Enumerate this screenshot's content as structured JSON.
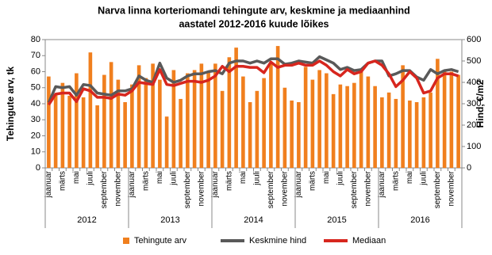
{
  "chart_data": {
    "type": "bar_line",
    "title_lines": [
      "Narva linna korteriomandi tehingute arv, keskmine ja mediaanhind",
      "aastatel 2012-2016 kuude lõikes"
    ],
    "y_label": "Tehingute arv, tk",
    "y2_label": "Hind, €/m2",
    "categories": [
      "jaanuar",
      null,
      "märts",
      null,
      "mai",
      null,
      "juuli",
      null,
      "september",
      null,
      "november",
      null,
      "jaanuar",
      null,
      "märts",
      null,
      "mai",
      null,
      "juuli",
      null,
      "september",
      null,
      "november",
      null,
      "jaanuar",
      null,
      "märts",
      null,
      "mai",
      null,
      "juuli",
      null,
      "september",
      null,
      "november",
      null,
      "jaanuar",
      null,
      "märts",
      null,
      "mai",
      null,
      "juuli",
      null,
      "september",
      null,
      "november",
      null,
      "jaanuar",
      null,
      "märts",
      null,
      "mai",
      null,
      "juuli",
      null,
      "september",
      null,
      "november",
      null
    ],
    "year_groups": [
      "2012",
      "2013",
      "2014",
      "2015",
      "2016"
    ],
    "series": [
      {
        "name": "Tehingute arv",
        "kind": "bar",
        "color": "#f07f1e",
        "values": [
          57,
          46,
          53,
          45,
          59,
          44,
          72,
          39,
          58,
          66,
          55,
          41,
          52,
          64,
          56,
          65,
          55,
          32,
          61,
          43,
          59,
          61,
          65,
          60,
          65,
          48,
          69,
          75,
          57,
          41,
          48,
          56,
          65,
          76,
          50,
          42,
          41,
          63,
          55,
          61,
          59,
          46,
          52,
          51,
          53,
          61,
          57,
          51,
          44,
          47,
          43,
          64,
          42,
          41,
          44,
          47,
          68,
          61,
          60,
          58
        ]
      },
      {
        "name": "Keskmine hind",
        "kind": "line",
        "axis": "y2",
        "color": "#595959",
        "values": [
          305,
          380,
          375,
          380,
          340,
          390,
          385,
          350,
          345,
          340,
          360,
          360,
          370,
          430,
          410,
          400,
          490,
          420,
          400,
          410,
          430,
          440,
          440,
          450,
          455,
          440,
          490,
          500,
          500,
          490,
          500,
          490,
          510,
          510,
          485,
          490,
          500,
          495,
          490,
          520,
          505,
          490,
          460,
          470,
          455,
          460,
          490,
          500,
          500,
          430,
          440,
          455,
          455,
          425,
          410,
          460,
          440,
          455,
          460,
          450
        ]
      },
      {
        "name": "Mediaan",
        "kind": "line",
        "axis": "y2",
        "color": "#d7261e",
        "values": [
          295,
          345,
          350,
          350,
          310,
          370,
          360,
          330,
          330,
          325,
          345,
          340,
          360,
          400,
          395,
          390,
          460,
          390,
          385,
          395,
          405,
          405,
          400,
          410,
          430,
          475,
          450,
          475,
          475,
          470,
          470,
          445,
          495,
          470,
          480,
          480,
          490,
          480,
          480,
          500,
          480,
          450,
          430,
          460,
          440,
          450,
          490,
          500,
          480,
          440,
          380,
          410,
          450,
          420,
          350,
          360,
          420,
          440,
          440,
          430
        ]
      }
    ],
    "ylim": [
      0,
      80
    ],
    "yticks": [
      0,
      10,
      20,
      30,
      40,
      50,
      60,
      70,
      80
    ],
    "y2lim": [
      0,
      600
    ],
    "y2ticks": [
      0,
      100,
      200,
      300,
      400,
      500,
      600
    ],
    "legend": "bottom"
  }
}
